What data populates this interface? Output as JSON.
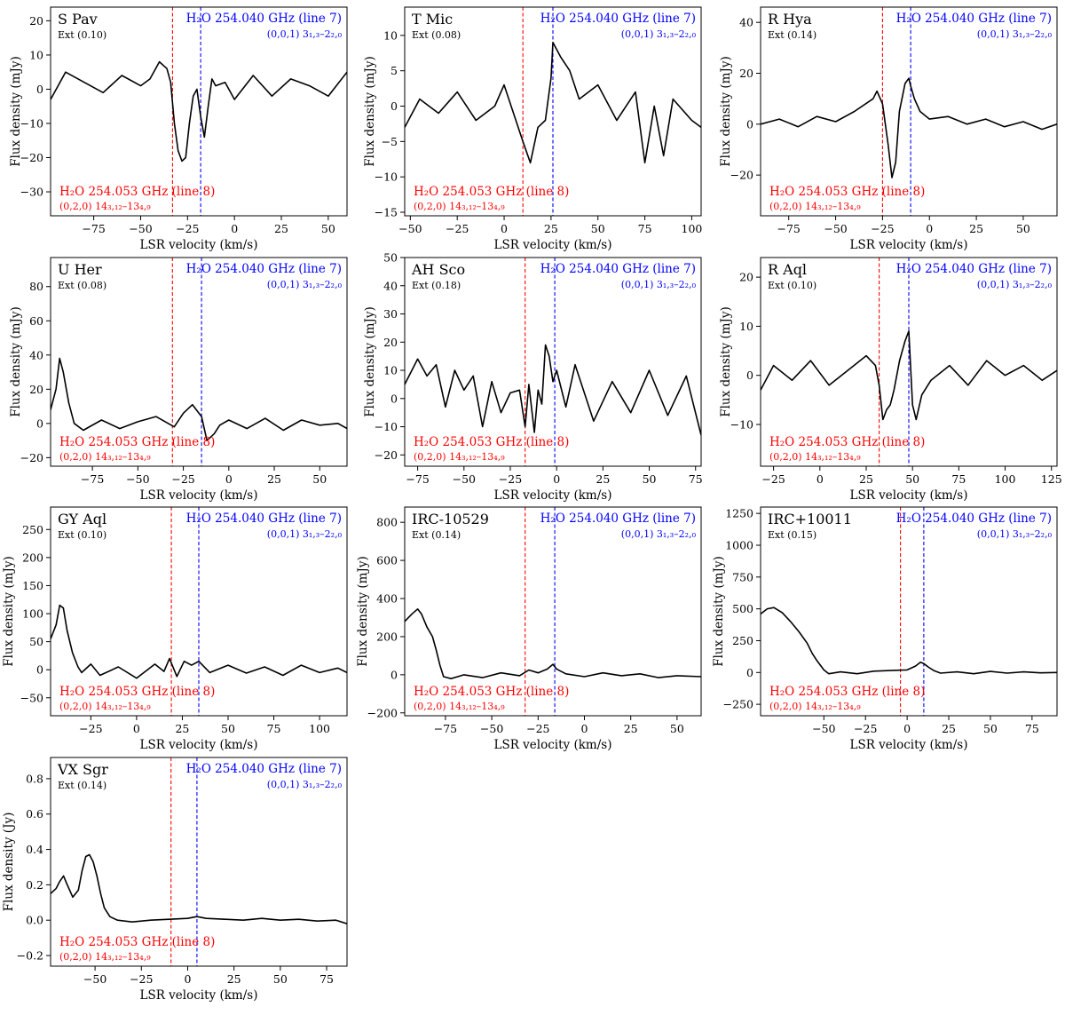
{
  "figure": {
    "xlabel": "LSR velocity (km/s)",
    "line7_label": "H₂O 254.040 GHz (line 7)",
    "line7_trans": "(0,0,1) 3₁,₃–2₂,₀",
    "line8_label": "H₂O 254.053 GHz (line 8)",
    "line8_trans": "(0,2,0) 14₃,₁₂–13₄,₉",
    "colors": {
      "line7": "#0000ff",
      "line8": "#ff0000",
      "spectrum": "#000000",
      "axes": "#000000"
    }
  },
  "chart_data": [
    {
      "type": "line",
      "star": "S Pav",
      "ext": "Ext (0.10)",
      "ylabel": "Flux density (mJy)",
      "xlim": [
        -98,
        60
      ],
      "ylim": [
        -37,
        24
      ],
      "xticks": [
        -75,
        -50,
        -25,
        0,
        25,
        50
      ],
      "yticks": [
        -30,
        -20,
        -10,
        0,
        10,
        20
      ],
      "v_line8": -33,
      "v_line7": -18,
      "x": [
        -98,
        -90,
        -80,
        -70,
        -60,
        -50,
        -45,
        -40,
        -36,
        -34,
        -32,
        -30,
        -28,
        -26,
        -24,
        -22,
        -20,
        -18,
        -16,
        -14,
        -12,
        -10,
        -5,
        0,
        10,
        20,
        30,
        40,
        50,
        60
      ],
      "y": [
        -3,
        5,
        2,
        -1,
        4,
        1,
        3,
        8,
        6,
        2,
        -10,
        -18,
        -21,
        -20,
        -10,
        -2,
        0,
        -8,
        -14,
        -5,
        3,
        1,
        2,
        -3,
        4,
        -2,
        3,
        1,
        -2,
        5
      ]
    },
    {
      "type": "line",
      "star": "T Mic",
      "ext": "Ext (0.08)",
      "ylabel": "Flux density (mJy)",
      "xlim": [
        -53,
        105
      ],
      "ylim": [
        -15.5,
        14
      ],
      "xticks": [
        -50,
        -25,
        0,
        25,
        50,
        75,
        100
      ],
      "yticks": [
        -15,
        -10,
        -5,
        0,
        5,
        10
      ],
      "v_line8": 10,
      "v_line7": 26,
      "x": [
        -53,
        -45,
        -35,
        -25,
        -15,
        -5,
        0,
        5,
        10,
        14,
        18,
        22,
        25,
        26,
        30,
        35,
        40,
        50,
        60,
        70,
        75,
        80,
        85,
        90,
        100,
        105
      ],
      "y": [
        -3,
        1,
        -1,
        2,
        -2,
        0,
        3,
        -1,
        -5,
        -8,
        -3,
        -2,
        4,
        9,
        7,
        5,
        1,
        3,
        -2,
        2,
        -8,
        0,
        -7,
        1,
        -2,
        -3
      ]
    },
    {
      "type": "line",
      "star": "R Hya",
      "ext": "Ext (0.14)",
      "ylabel": "Flux density (mJy)",
      "xlim": [
        -90,
        68
      ],
      "ylim": [
        -36,
        46
      ],
      "xticks": [
        -75,
        -50,
        -25,
        0,
        25,
        50
      ],
      "yticks": [
        -20,
        0,
        20,
        40
      ],
      "v_line8": -25,
      "v_line7": -10,
      "x": [
        -90,
        -80,
        -70,
        -60,
        -50,
        -40,
        -30,
        -28,
        -25,
        -22,
        -20,
        -18,
        -16,
        -13,
        -11,
        -10,
        -8,
        -5,
        0,
        10,
        20,
        30,
        40,
        50,
        60,
        68
      ],
      "y": [
        0,
        2,
        -1,
        3,
        1,
        5,
        10,
        13,
        8,
        -8,
        -21,
        -15,
        5,
        16,
        18,
        15,
        10,
        5,
        2,
        3,
        0,
        2,
        -1,
        1,
        -2,
        0
      ]
    },
    {
      "type": "line",
      "star": "U Her",
      "ext": "Ext (0.08)",
      "ylabel": "Flux density (mJy)",
      "xlim": [
        -98,
        65
      ],
      "ylim": [
        -25,
        97
      ],
      "xticks": [
        -75,
        -50,
        -25,
        0,
        25,
        50
      ],
      "yticks": [
        -20,
        0,
        20,
        40,
        60,
        80
      ],
      "v_line8": -31,
      "v_line7": -15,
      "x": [
        -98,
        -95,
        -93,
        -91,
        -88,
        -85,
        -80,
        -70,
        -60,
        -50,
        -40,
        -30,
        -25,
        -20,
        -15,
        -12,
        -8,
        -5,
        0,
        10,
        20,
        30,
        40,
        50,
        60,
        65
      ],
      "y": [
        8,
        20,
        38,
        30,
        12,
        0,
        -4,
        2,
        -3,
        1,
        4,
        -2,
        6,
        11,
        4,
        -10,
        -6,
        -1,
        2,
        -3,
        3,
        -4,
        2,
        -1,
        0,
        -3
      ]
    },
    {
      "type": "line",
      "star": "AH Sco",
      "ext": "Ext (0.18)",
      "ylabel": "Flux density (mJy)",
      "xlim": [
        -82,
        78
      ],
      "ylim": [
        -24,
        50
      ],
      "xticks": [
        -75,
        -50,
        -25,
        0,
        25,
        50,
        75
      ],
      "yticks": [
        -20,
        -10,
        0,
        10,
        20,
        30,
        40,
        50
      ],
      "v_line8": -17,
      "v_line7": -1,
      "x": [
        -82,
        -75,
        -70,
        -65,
        -60,
        -55,
        -50,
        -45,
        -40,
        -35,
        -30,
        -25,
        -20,
        -17,
        -15,
        -12,
        -10,
        -8,
        -6,
        -4,
        -2,
        0,
        5,
        10,
        20,
        30,
        40,
        50,
        60,
        70,
        78
      ],
      "y": [
        5,
        14,
        8,
        12,
        -3,
        10,
        3,
        8,
        -10,
        6,
        -5,
        2,
        3,
        -10,
        5,
        -12,
        3,
        -2,
        19,
        15,
        6,
        10,
        -3,
        12,
        -8,
        6,
        -5,
        10,
        -6,
        8,
        -13
      ]
    },
    {
      "type": "line",
      "star": "R Aql",
      "ext": "Ext (0.10)",
      "ylabel": "Flux density (mJy)",
      "xlim": [
        -32,
        128
      ],
      "ylim": [
        -18.5,
        24
      ],
      "xticks": [
        -25,
        0,
        25,
        50,
        75,
        100,
        125
      ],
      "yticks": [
        -10,
        0,
        10,
        20
      ],
      "v_line8": 32,
      "v_line7": 48,
      "x": [
        -32,
        -25,
        -15,
        -5,
        5,
        15,
        25,
        30,
        32,
        34,
        36,
        38,
        40,
        43,
        46,
        48,
        50,
        52,
        55,
        60,
        70,
        80,
        90,
        100,
        110,
        120,
        128
      ],
      "y": [
        -3,
        2,
        -1,
        3,
        -2,
        1,
        4,
        2,
        -2,
        -9,
        -7,
        -6,
        -3,
        3,
        7,
        9,
        -6,
        -9,
        -4,
        -1,
        2,
        -2,
        3,
        0,
        2,
        -1,
        1
      ]
    },
    {
      "type": "line",
      "star": "GY Aql",
      "ext": "Ext (0.10)",
      "ylabel": "Flux density (mJy)",
      "xlim": [
        -47,
        115
      ],
      "ylim": [
        -82,
        290
      ],
      "xticks": [
        -25,
        0,
        25,
        50,
        75,
        100
      ],
      "yticks": [
        -50,
        0,
        50,
        100,
        150,
        200,
        250
      ],
      "v_line8": 19,
      "v_line7": 34,
      "x": [
        -47,
        -44,
        -42,
        -40,
        -38,
        -35,
        -32,
        -30,
        -25,
        -20,
        -10,
        0,
        10,
        15,
        18,
        22,
        26,
        30,
        34,
        40,
        50,
        60,
        70,
        80,
        90,
        100,
        110,
        115
      ],
      "y": [
        55,
        80,
        115,
        110,
        70,
        30,
        5,
        -5,
        10,
        -10,
        5,
        -15,
        10,
        -3,
        20,
        -12,
        15,
        8,
        15,
        -5,
        8,
        -6,
        5,
        -10,
        8,
        -5,
        3,
        -5
      ]
    },
    {
      "type": "line",
      "star": "IRC-10529",
      "ext": "Ext (0.14)",
      "ylabel": "Flux density (mJy)",
      "xlim": [
        -97,
        63
      ],
      "ylim": [
        -215,
        880
      ],
      "xticks": [
        -75,
        -50,
        -25,
        0,
        25,
        50
      ],
      "yticks": [
        -200,
        0,
        200,
        400,
        600,
        800
      ],
      "v_line8": -32,
      "v_line7": -16,
      "x": [
        -97,
        -93,
        -90,
        -88,
        -85,
        -82,
        -80,
        -78,
        -76,
        -72,
        -65,
        -55,
        -45,
        -35,
        -30,
        -25,
        -20,
        -17,
        -15,
        -10,
        0,
        10,
        20,
        30,
        40,
        50,
        63
      ],
      "y": [
        280,
        320,
        345,
        320,
        250,
        200,
        130,
        50,
        -10,
        -20,
        0,
        -15,
        10,
        -5,
        25,
        10,
        30,
        55,
        30,
        5,
        -10,
        10,
        -5,
        5,
        -15,
        -5,
        -10
      ]
    },
    {
      "type": "line",
      "star": "IRC+10011",
      "ext": "Ext (0.15)",
      "ylabel": "Flux density (mJy)",
      "xlim": [
        -88,
        90
      ],
      "ylim": [
        -340,
        1300
      ],
      "xticks": [
        -50,
        -25,
        0,
        25,
        50,
        75
      ],
      "yticks": [
        -250,
        0,
        250,
        500,
        750,
        1000,
        1250
      ],
      "v_line8": -4,
      "v_line7": 10,
      "x": [
        -88,
        -84,
        -80,
        -75,
        -70,
        -65,
        -60,
        -57,
        -54,
        -50,
        -47,
        -40,
        -30,
        -20,
        -10,
        0,
        5,
        8,
        10,
        13,
        16,
        20,
        30,
        40,
        50,
        60,
        70,
        80,
        90
      ],
      "y": [
        460,
        500,
        510,
        470,
        400,
        320,
        230,
        150,
        90,
        20,
        -10,
        5,
        -10,
        10,
        15,
        20,
        50,
        80,
        70,
        40,
        15,
        -5,
        5,
        -10,
        8,
        -5,
        5,
        -3,
        0
      ]
    },
    {
      "type": "line",
      "star": "VX Sgr",
      "ext": "Ext (0.14)",
      "ylabel": "Flux density (Jy)",
      "xlim": [
        -74,
        86
      ],
      "ylim": [
        -0.26,
        0.92
      ],
      "xticks": [
        -50,
        -25,
        0,
        25,
        50,
        75
      ],
      "yticks": [
        -0.2,
        0.0,
        0.2,
        0.4,
        0.6,
        0.8
      ],
      "v_line8": -9,
      "v_line7": 5,
      "x": [
        -74,
        -71,
        -69,
        -67,
        -65,
        -62,
        -59,
        -57,
        -55,
        -53,
        -51,
        -49,
        -47,
        -45,
        -42,
        -38,
        -30,
        -20,
        -10,
        0,
        5,
        10,
        20,
        30,
        40,
        50,
        60,
        70,
        80,
        86
      ],
      "y": [
        0.15,
        0.18,
        0.22,
        0.25,
        0.2,
        0.13,
        0.17,
        0.28,
        0.36,
        0.37,
        0.33,
        0.25,
        0.15,
        0.07,
        0.02,
        0.0,
        -0.01,
        0.0,
        0.005,
        0.01,
        0.02,
        0.01,
        0.005,
        0.0,
        0.01,
        0.0,
        0.005,
        -0.005,
        0.0,
        -0.02
      ]
    }
  ]
}
